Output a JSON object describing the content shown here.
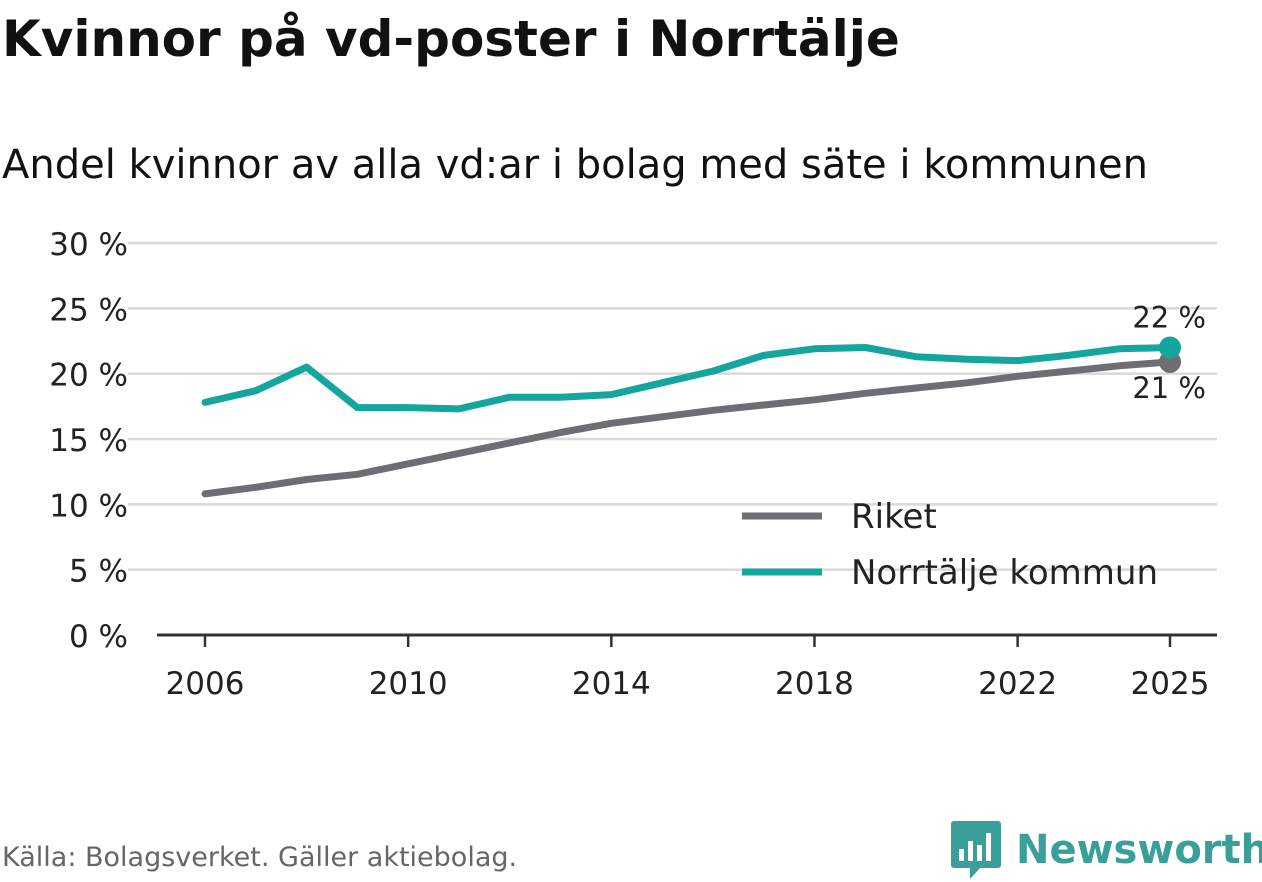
{
  "title": "Kvinnor på vd-poster i Norrtälje",
  "subtitle": "Andel kvinnor av alla vd:ar i bolag med säte i kommunen",
  "source": "Källa: Bolagsverket. Gäller aktiebolag.",
  "brand": "Newsworthy",
  "colors": {
    "riket": "#6f6c74",
    "norrtalje": "#14a59c",
    "grid": "#d9d9d9",
    "axis": "#333333"
  },
  "chart_data": {
    "type": "line",
    "title": "Kvinnor på vd-poster i Norrtälje",
    "subtitle": "Andel kvinnor av alla vd:ar i bolag med säte i kommunen",
    "xlabel": "",
    "ylabel": "",
    "ylim": [
      0,
      30
    ],
    "xlim": [
      2006,
      2025
    ],
    "y_ticks": [
      0,
      5,
      10,
      15,
      20,
      25,
      30
    ],
    "y_tick_labels": [
      "0 %",
      "5 %",
      "10 %",
      "15 %",
      "20 %",
      "25 %",
      "30 %"
    ],
    "x_ticks": [
      2006,
      2010,
      2014,
      2018,
      2022,
      2025
    ],
    "x_tick_labels": [
      "2006",
      "2010",
      "2014",
      "2018",
      "2022",
      "2025"
    ],
    "grid": true,
    "legend_position": "bottom-right",
    "x": [
      2006,
      2007,
      2008,
      2009,
      2010,
      2011,
      2012,
      2013,
      2014,
      2015,
      2016,
      2017,
      2018,
      2019,
      2020,
      2021,
      2022,
      2023,
      2024,
      2025
    ],
    "series": [
      {
        "name": "Riket",
        "color_key": "riket",
        "end_label": "21 %",
        "values": [
          10.8,
          11.3,
          11.9,
          12.3,
          13.1,
          13.9,
          14.7,
          15.5,
          16.2,
          16.7,
          17.2,
          17.6,
          18.0,
          18.5,
          18.9,
          19.3,
          19.8,
          20.2,
          20.6,
          20.9
        ]
      },
      {
        "name": "Norrtälje kommun",
        "color_key": "norrtalje",
        "end_label": "22 %",
        "values": [
          17.8,
          18.7,
          20.5,
          17.4,
          17.4,
          17.3,
          18.2,
          18.2,
          18.4,
          19.3,
          20.2,
          21.4,
          21.9,
          22.0,
          21.3,
          21.1,
          21.0,
          21.4,
          21.9,
          22.0
        ]
      }
    ]
  }
}
